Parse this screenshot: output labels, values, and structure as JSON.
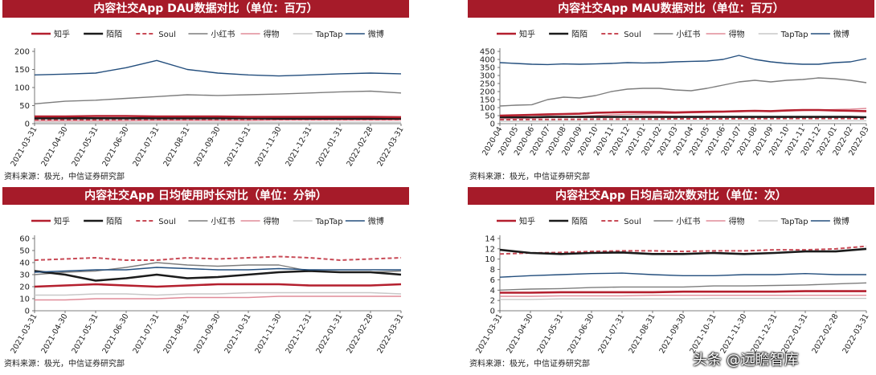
{
  "watermark": "头条 @远瞻智库",
  "legend": [
    {
      "name": "知乎",
      "color": "#b41f2e",
      "dash": "",
      "width": 2.6
    },
    {
      "name": "陌陌",
      "color": "#1b1b1b",
      "dash": "",
      "width": 2.6
    },
    {
      "name": "Soul",
      "color": "#c84a56",
      "dash": "5,3",
      "width": 2
    },
    {
      "name": "小红书",
      "color": "#7d7d7d",
      "dash": "",
      "width": 1.4
    },
    {
      "name": "得物",
      "color": "#e08b98",
      "dash": "",
      "width": 1.4
    },
    {
      "name": "TapTap",
      "color": "#c8c8c8",
      "dash": "",
      "width": 1.4
    },
    {
      "name": "微博",
      "color": "#234e7d",
      "dash": "",
      "width": 1.4
    }
  ],
  "chart_data": [
    {
      "type": "line",
      "title": "内容社交App DAU数据对比（单位：百万）",
      "source": "资料来源：极光，中信证券研究部",
      "ylim": [
        0,
        200
      ],
      "yticks": [
        0,
        50,
        100,
        150,
        200
      ],
      "categories": [
        "2021-03-31",
        "2021-04-30",
        "2021-05-31",
        "2021-06-30",
        "2021-07-31",
        "2021-08-31",
        "2021-09-30",
        "2021-10-31",
        "2021-11-30",
        "2021-12-31",
        "2022-01-31",
        "2022-02-28",
        "2022-03-31"
      ],
      "series": [
        {
          "name": "知乎",
          "values": [
            20,
            20,
            21,
            21,
            20,
            20,
            20,
            19,
            19,
            19,
            19,
            19,
            18
          ]
        },
        {
          "name": "陌陌",
          "values": [
            15,
            15,
            15,
            15,
            15,
            15,
            15,
            15,
            14,
            14,
            14,
            14,
            14
          ]
        },
        {
          "name": "Soul",
          "values": [
            11,
            11,
            11,
            12,
            12,
            12,
            12,
            12,
            12,
            12,
            12,
            12,
            12
          ]
        },
        {
          "name": "小红书",
          "values": [
            55,
            62,
            65,
            70,
            75,
            80,
            78,
            80,
            82,
            85,
            88,
            90,
            85
          ]
        },
        {
          "name": "得物",
          "values": [
            8,
            8,
            8,
            8,
            9,
            9,
            9,
            9,
            10,
            10,
            10,
            10,
            10
          ]
        },
        {
          "name": "TapTap",
          "values": [
            4,
            4,
            4,
            4,
            4,
            4,
            4,
            4,
            4,
            4,
            4,
            4,
            4
          ]
        },
        {
          "name": "微博",
          "values": [
            135,
            137,
            140,
            155,
            175,
            150,
            140,
            135,
            132,
            135,
            138,
            140,
            138
          ]
        }
      ]
    },
    {
      "type": "line",
      "title": "内容社交App MAU数据对比（单位：百万）",
      "source": "资料来源：极光，中信证券研究部",
      "ylim": [
        0,
        450
      ],
      "yticks": [
        0,
        50,
        100,
        150,
        200,
        250,
        300,
        350,
        400,
        450
      ],
      "categories": [
        "2020-04",
        "2020-05",
        "2020-06",
        "2020-07",
        "2020-08",
        "2020-09",
        "2020-10",
        "2020-11",
        "2020-12",
        "2021-01",
        "2021-02",
        "2021-03",
        "2021-04",
        "2021-05",
        "2021-06",
        "2021-07",
        "2021-08",
        "2021-09",
        "2021-10",
        "2021-11",
        "2021-12",
        "2022-01",
        "2022-02",
        "2022-03"
      ],
      "series": [
        {
          "name": "知乎",
          "values": [
            50,
            52,
            55,
            58,
            60,
            62,
            68,
            70,
            72,
            72,
            72,
            70,
            72,
            74,
            75,
            78,
            80,
            78,
            82,
            85,
            85,
            82,
            80,
            78
          ]
        },
        {
          "name": "陌陌",
          "values": [
            40,
            40,
            40,
            42,
            42,
            42,
            42,
            42,
            42,
            42,
            42,
            42,
            42,
            42,
            42,
            42,
            42,
            42,
            42,
            42,
            42,
            42,
            42,
            40
          ]
        },
        {
          "name": "Soul",
          "values": [
            25,
            25,
            26,
            26,
            27,
            27,
            28,
            28,
            28,
            29,
            29,
            30,
            30,
            30,
            30,
            31,
            31,
            31,
            32,
            32,
            32,
            32,
            32,
            30
          ]
        },
        {
          "name": "小红书",
          "values": [
            110,
            115,
            118,
            150,
            165,
            160,
            175,
            200,
            215,
            220,
            220,
            210,
            205,
            220,
            240,
            260,
            270,
            260,
            270,
            275,
            285,
            280,
            270,
            255
          ]
        },
        {
          "name": "得物",
          "values": [
            30,
            32,
            35,
            38,
            40,
            45,
            50,
            55,
            58,
            60,
            62,
            65,
            68,
            70,
            72,
            75,
            78,
            76,
            80,
            82,
            85,
            88,
            90,
            95
          ]
        },
        {
          "name": "TapTap",
          "values": [
            15,
            15,
            15,
            16,
            16,
            16,
            17,
            17,
            17,
            17,
            18,
            18,
            18,
            18,
            18,
            18,
            18,
            18,
            18,
            18,
            18,
            18,
            18,
            18
          ]
        },
        {
          "name": "微博",
          "values": [
            380,
            375,
            370,
            368,
            372,
            370,
            372,
            375,
            380,
            378,
            380,
            385,
            388,
            390,
            400,
            425,
            400,
            385,
            375,
            370,
            370,
            380,
            385,
            405
          ]
        }
      ]
    },
    {
      "type": "line",
      "title": "内容社交App 日均使用时长对比（单位：分钟）",
      "source": "资料来源：极光，中信证券研究部",
      "ylim": [
        0,
        60
      ],
      "yticks": [
        0,
        10,
        20,
        30,
        40,
        50,
        60
      ],
      "categories": [
        "2021-03-31",
        "2021-04-30",
        "2021-05-31",
        "2021-06-30",
        "2021-07-31",
        "2021-08-31",
        "2021-09-30",
        "2021-10-31",
        "2021-11-30",
        "2021-12-31",
        "2022-01-31",
        "2022-02-28",
        "2022-03-31"
      ],
      "series": [
        {
          "name": "知乎",
          "values": [
            20,
            21,
            22,
            21,
            20,
            21,
            22,
            22,
            22,
            21,
            21,
            21,
            22
          ]
        },
        {
          "name": "陌陌",
          "values": [
            33,
            30,
            25,
            27,
            30,
            27,
            28,
            30,
            32,
            33,
            32,
            32,
            30
          ]
        },
        {
          "name": "Soul",
          "values": [
            42,
            43,
            44,
            42,
            42,
            44,
            43,
            44,
            45,
            44,
            42,
            43,
            44
          ]
        },
        {
          "name": "小红书",
          "values": [
            30,
            32,
            33,
            36,
            40,
            38,
            37,
            38,
            38,
            33,
            32,
            32,
            33
          ]
        },
        {
          "name": "得物",
          "values": [
            9,
            9,
            10,
            10,
            10,
            11,
            11,
            11,
            12,
            12,
            12,
            12,
            12
          ]
        },
        {
          "name": "TapTap",
          "values": [
            13,
            13,
            14,
            14,
            13,
            14,
            14,
            15,
            15,
            15,
            15,
            15,
            14
          ]
        },
        {
          "name": "微博",
          "values": [
            32,
            33,
            34,
            34,
            36,
            35,
            34,
            34,
            35,
            34,
            34,
            34,
            34
          ]
        }
      ]
    },
    {
      "type": "line",
      "title": "内容社交App 日均启动次数对比（单位：次）",
      "source": "资料来源：极光，中信证券研究部",
      "ylim": [
        0,
        14
      ],
      "yticks": [
        0,
        2,
        4,
        6,
        8,
        10,
        12,
        14
      ],
      "categories": [
        "2021-03-31",
        "2021-04-30",
        "2021-05-31",
        "2021-06-30",
        "2021-07-31",
        "2021-08-31",
        "2021-09-30",
        "2021-10-31",
        "2021-11-30",
        "2021-12-31",
        "2022-01-31",
        "2022-02-28",
        "2022-03-31"
      ],
      "series": [
        {
          "name": "知乎",
          "values": [
            3.5,
            3.5,
            3.6,
            3.6,
            3.6,
            3.6,
            3.7,
            3.7,
            3.7,
            3.7,
            3.8,
            3.8,
            3.8
          ]
        },
        {
          "name": "陌陌",
          "values": [
            11.8,
            11.2,
            11.0,
            11.2,
            11.3,
            11.0,
            11.0,
            11.2,
            11.0,
            11.2,
            11.5,
            11.5,
            12.0
          ]
        },
        {
          "name": "Soul",
          "values": [
            11.0,
            11.2,
            11.3,
            11.5,
            11.6,
            11.6,
            11.5,
            11.6,
            11.6,
            11.8,
            11.8,
            12.0,
            12.5
          ]
        },
        {
          "name": "小红书",
          "values": [
            4.0,
            4.2,
            4.3,
            4.5,
            4.6,
            4.6,
            4.6,
            4.8,
            4.8,
            4.9,
            5.0,
            5.2,
            5.4
          ]
        },
        {
          "name": "得物",
          "values": [
            2.8,
            2.8,
            2.9,
            2.9,
            2.9,
            3.0,
            3.0,
            3.0,
            3.0,
            3.0,
            3.0,
            3.0,
            3.0
          ]
        },
        {
          "name": "TapTap",
          "values": [
            2.2,
            2.2,
            2.3,
            2.3,
            2.3,
            2.3,
            2.3,
            2.4,
            2.4,
            2.4,
            2.4,
            2.4,
            2.4
          ]
        },
        {
          "name": "微博",
          "values": [
            6.5,
            6.8,
            7.0,
            7.2,
            7.3,
            7.0,
            6.8,
            6.8,
            7.0,
            7.0,
            7.2,
            7.0,
            7.0
          ]
        }
      ]
    }
  ]
}
